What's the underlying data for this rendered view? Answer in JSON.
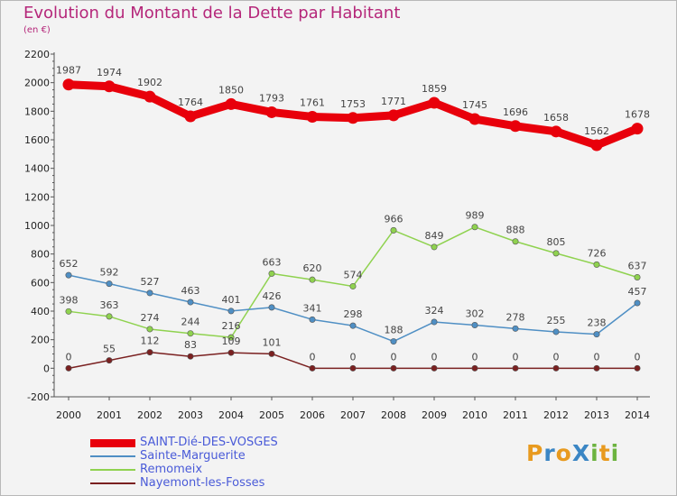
{
  "title": "Evolution du Montant de la Dette par Habitant",
  "subtitle": "(en €)",
  "logo": {
    "text": "ProXiti",
    "letters": [
      {
        "ch": "P",
        "color": "#e89a1f"
      },
      {
        "ch": "r",
        "color": "#3b86c4"
      },
      {
        "ch": "o",
        "color": "#e89a1f"
      },
      {
        "ch": "X",
        "color": "#3b86c4"
      },
      {
        "ch": "i",
        "color": "#6cb33f"
      },
      {
        "ch": "t",
        "color": "#e89a1f"
      },
      {
        "ch": "i",
        "color": "#6cb33f"
      }
    ]
  },
  "colors": {
    "axis": "#555555",
    "grid": "#dddddd",
    "title": "#b5277a",
    "legend_text": "#4a5bd8"
  },
  "chart_data": {
    "type": "line",
    "x": [
      2000,
      2001,
      2002,
      2003,
      2004,
      2005,
      2006,
      2007,
      2008,
      2009,
      2010,
      2011,
      2012,
      2013,
      2014
    ],
    "ylim": [
      -200,
      2200
    ],
    "yticks": [
      -200,
      0,
      200,
      400,
      600,
      800,
      1000,
      1200,
      1400,
      1600,
      1800,
      2000,
      2200
    ],
    "grid": false,
    "legend": "bottom-left",
    "series": [
      {
        "name": "SAINT-Dié-DES-VOSGES",
        "color": "#e8000b",
        "width": 9,
        "values": [
          1987,
          1974,
          1902,
          1764,
          1850,
          1793,
          1761,
          1753,
          1771,
          1859,
          1745,
          1696,
          1658,
          1562,
          1678
        ]
      },
      {
        "name": "Sainte-Marguerite",
        "color": "#4f8fc4",
        "width": 1.5,
        "values": [
          652,
          592,
          527,
          463,
          401,
          426,
          341,
          298,
          188,
          324,
          302,
          278,
          255,
          238,
          457
        ]
      },
      {
        "name": "Remomeix",
        "color": "#8fd24f",
        "width": 1.5,
        "values": [
          398,
          363,
          274,
          244,
          216,
          663,
          620,
          574,
          966,
          849,
          989,
          888,
          805,
          726,
          637
        ]
      },
      {
        "name": "Nayemont-les-Fosses",
        "color": "#7a2020",
        "width": 1.5,
        "values": [
          0,
          55,
          112,
          83,
          109,
          101,
          0,
          0,
          0,
          0,
          0,
          0,
          0,
          0,
          0
        ]
      }
    ]
  }
}
